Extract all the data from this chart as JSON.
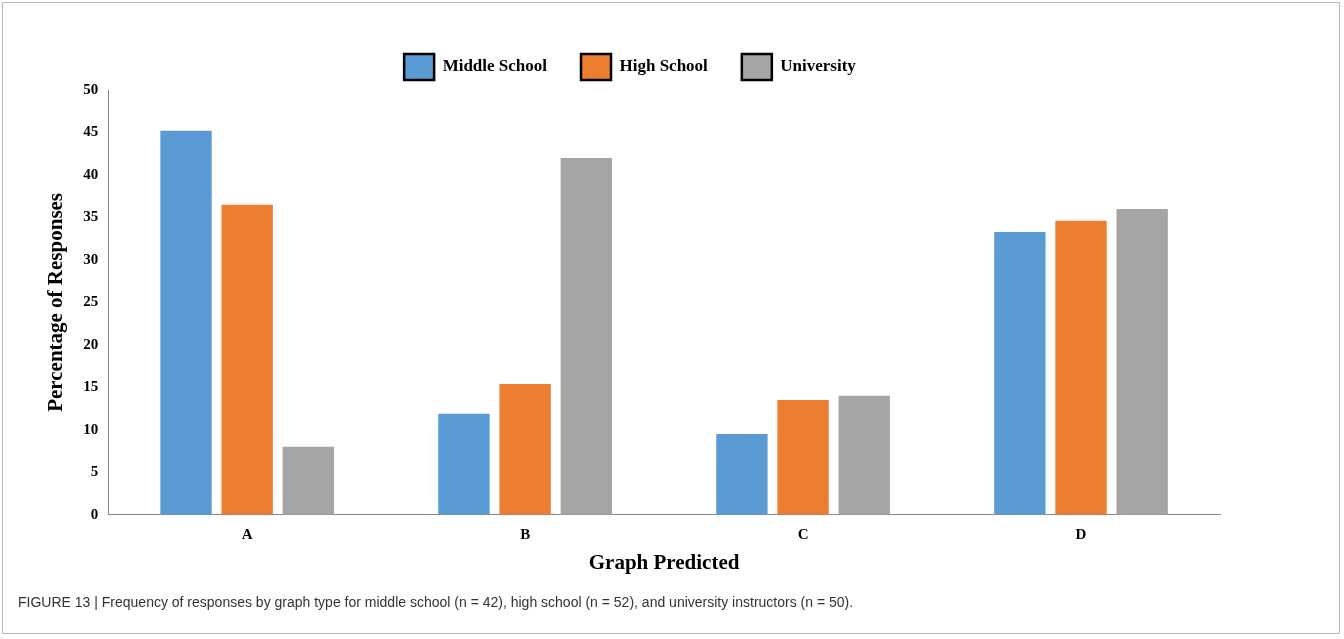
{
  "chart_data": {
    "type": "bar",
    "xlabel": "Graph Predicted",
    "ylabel": "Percentage of Responses",
    "categories": [
      "A",
      "B",
      "C",
      "D"
    ],
    "series": [
      {
        "name": "Middle School",
        "color": "#5b9bd5",
        "values": [
          45.2,
          11.9,
          9.5,
          33.3
        ]
      },
      {
        "name": "High School",
        "color": "#ed7d31",
        "values": [
          36.5,
          15.4,
          13.5,
          34.6
        ]
      },
      {
        "name": "University",
        "color": "#a5a5a5",
        "values": [
          8,
          42,
          14,
          36
        ]
      }
    ],
    "ylim": [
      0,
      50
    ],
    "yticks": [
      0,
      5,
      10,
      15,
      20,
      25,
      30,
      35,
      40,
      45,
      50
    ],
    "grid": false,
    "legend": "top",
    "annotations": [
      "FIGURE 13 | Frequency of responses by graph type for middle school (n = 42), high school (n = 52), and university instructors (n = 50)."
    ]
  }
}
